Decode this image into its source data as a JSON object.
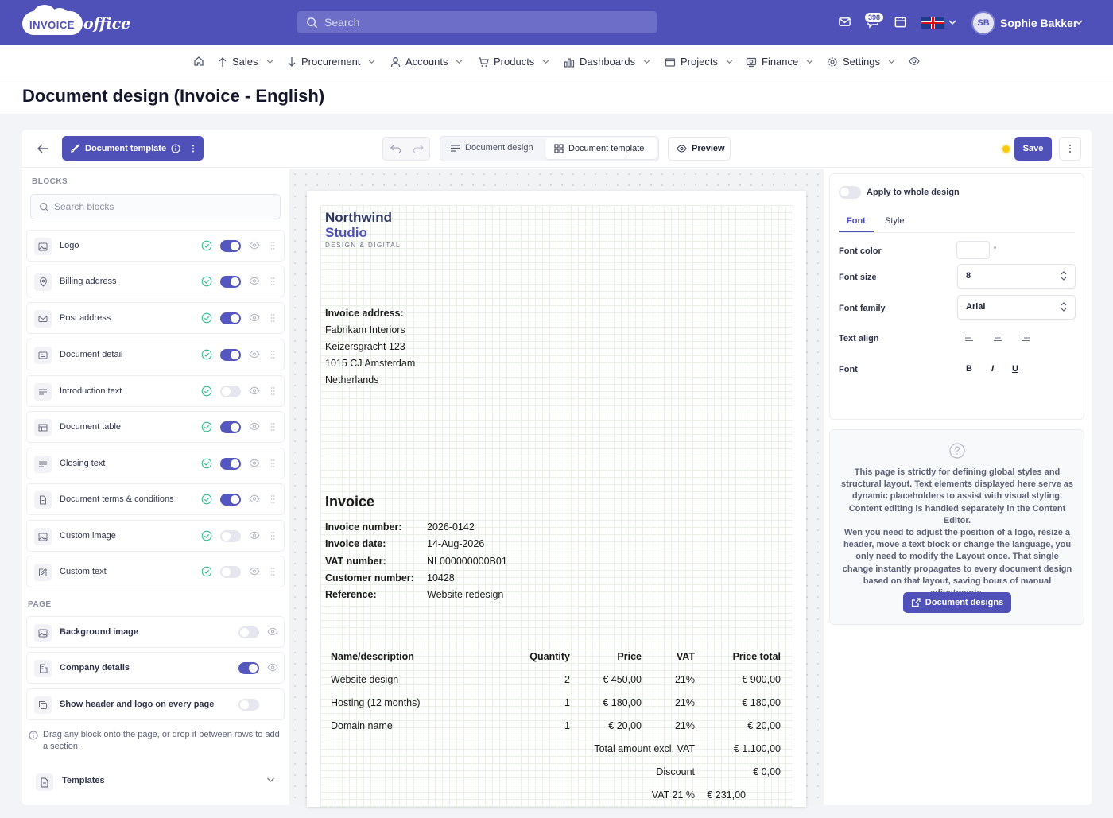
{
  "header": {
    "logo_text_1": "INVOICE",
    "logo_text_2": "office",
    "search_placeholder": "Search",
    "notification_count": "398",
    "user_initials": "SB",
    "user_name": "Sophie Bakker"
  },
  "nav": {
    "items": [
      {
        "label": "Sales"
      },
      {
        "label": "Procurement"
      },
      {
        "label": "Accounts"
      },
      {
        "label": "Products"
      },
      {
        "label": "Dashboards"
      },
      {
        "label": "Projects"
      },
      {
        "label": "Finance"
      },
      {
        "label": "Settings"
      }
    ]
  },
  "page": {
    "title": "Document design (Invoice - English)"
  },
  "toolbar": {
    "template_button": "Document template",
    "seg_design": "Document design",
    "seg_template": "Document template",
    "preview": "Preview",
    "save": "Save"
  },
  "blocks": {
    "section_label": "BLOCKS",
    "search_placeholder": "Search blocks",
    "items": [
      {
        "label": "Logo",
        "icon": "image-icon",
        "enabled": true
      },
      {
        "label": "Billing address",
        "icon": "location-pin-icon",
        "enabled": true
      },
      {
        "label": "Post address",
        "icon": "mail-icon",
        "enabled": true
      },
      {
        "label": "Document detail",
        "icon": "id-card-icon",
        "enabled": true
      },
      {
        "label": "Introduction text",
        "icon": "text-lines-icon",
        "enabled": false
      },
      {
        "label": "Document table",
        "icon": "table-icon",
        "enabled": true
      },
      {
        "label": "Closing text",
        "icon": "text-lines-icon",
        "enabled": true
      },
      {
        "label": "Document terms & conditions",
        "icon": "file-icon",
        "enabled": true
      },
      {
        "label": "Custom image",
        "icon": "image-icon",
        "enabled": false
      },
      {
        "label": "Custom text",
        "icon": "edit-icon",
        "enabled": false
      }
    ]
  },
  "page_section": {
    "section_label": "PAGE",
    "items": [
      {
        "label": "Background image",
        "icon": "image-icon",
        "enabled": false
      },
      {
        "label": "Company details",
        "icon": "building-icon",
        "enabled": true
      },
      {
        "label": "Show header and logo on every page",
        "icon": "copy-icon",
        "enabled": false
      }
    ],
    "hint": "Drag any block onto the page, or drop it between rows to add a section.",
    "templates_label": "Templates"
  },
  "document": {
    "company_line1": "Northwind",
    "company_line2": "Studio",
    "company_sub": "DESIGN & DIGITAL",
    "address_heading": "Invoice address:",
    "address_lines": [
      "Fabrikam Interiors",
      "Keizersgracht 123",
      "1015 CJ Amsterdam",
      "Netherlands"
    ],
    "title": "Invoice",
    "meta": [
      {
        "label": "Invoice number:",
        "value": "2026-0142"
      },
      {
        "label": "Invoice date:",
        "value": "14-Aug-2026"
      },
      {
        "label": "VAT number:",
        "value": "NL000000000B01"
      },
      {
        "label": "Customer number:",
        "value": "10428"
      },
      {
        "label": "Reference:",
        "value": "Website redesign"
      }
    ],
    "table_headers": [
      "Name/description",
      "Quantity",
      "Price",
      "VAT",
      "Price total"
    ],
    "rows": [
      [
        "Website design",
        "2",
        "€ 450,00",
        "21%",
        "€ 900,00"
      ],
      [
        "Hosting (12 months)",
        "1",
        "€ 180,00",
        "21%",
        "€ 180,00"
      ],
      [
        "Domain name",
        "1",
        "€ 20,00",
        "21%",
        "€ 20,00"
      ]
    ],
    "totals": [
      {
        "label": "Total amount excl. VAT",
        "value": "€ 1.100,00"
      },
      {
        "label": "Discount",
        "value": "€ 0,00"
      },
      {
        "label": "VAT 21 %",
        "value": "€ 231,00"
      }
    ]
  },
  "props": {
    "apply_label": "Apply to whole design",
    "tab_font": "Font",
    "tab_style": "Style",
    "font_color_label": "Font color",
    "font_size_label": "Font size",
    "font_size_value": "8",
    "font_family_label": "Font family",
    "font_family_value": "Arial",
    "text_align_label": "Text align",
    "font_label": "Font",
    "bold": "B",
    "italic": "I",
    "underline": "U"
  },
  "info": {
    "text1": "This page is strictly for defining global styles and structural layout. Text elements displayed here serve as dynamic placeholders to assist with visual styling. Content editing is handled separately in the Content Editor.",
    "text2": "Wen you need to adjust the position of a logo, resize a header, move a text block or change the language, you only need to modify the Layout once. That single change instantly propagates to every document design based on that layout, saving hours of manual adjustments.",
    "button": "Document designs"
  },
  "colors": {
    "primary": "#4f51b8",
    "toggle_on": "#5557c0",
    "check_green": "#34c08a",
    "status_dot": "#f9c80e"
  }
}
